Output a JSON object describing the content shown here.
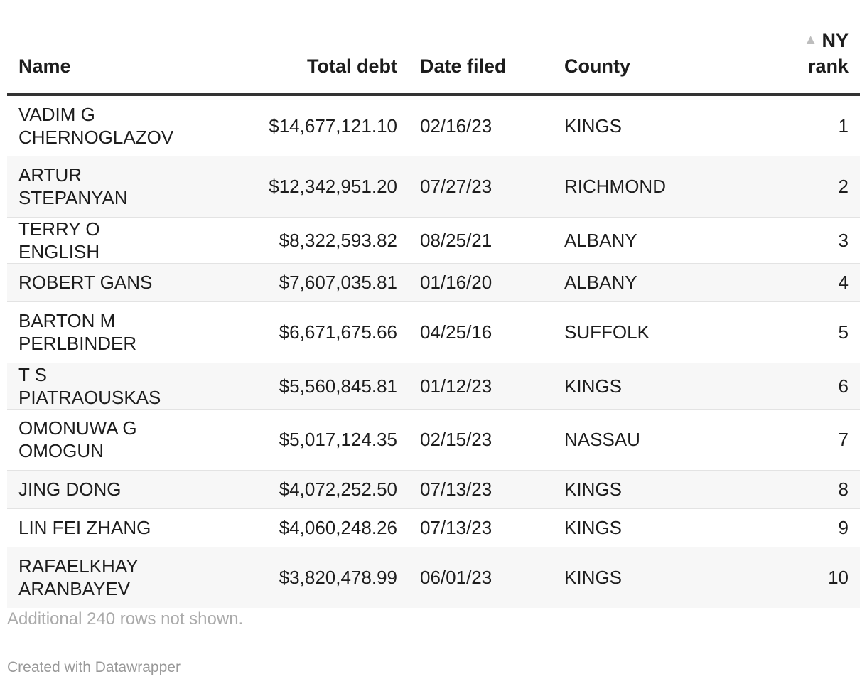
{
  "chart_data": {
    "type": "table",
    "columns": [
      {
        "key": "name",
        "label": "Name",
        "align": "left"
      },
      {
        "key": "total_debt",
        "label": "Total debt",
        "align": "right"
      },
      {
        "key": "date_filed",
        "label": "Date filed",
        "align": "left"
      },
      {
        "key": "county",
        "label": "County",
        "align": "left"
      },
      {
        "key": "ny_rank",
        "label": "NY rank",
        "align": "right",
        "sorted": "ascending"
      }
    ],
    "rows": [
      {
        "name": "VADIM G CHERNOGLAZOV",
        "total_debt": "$14,677,121.10",
        "date_filed": "02/16/23",
        "county": "KINGS",
        "ny_rank": "1"
      },
      {
        "name": "ARTUR STEPANYAN",
        "total_debt": "$12,342,951.20",
        "date_filed": "07/27/23",
        "county": "RICHMOND",
        "ny_rank": "2"
      },
      {
        "name": "TERRY O ENGLISH",
        "total_debt": "$8,322,593.82",
        "date_filed": "08/25/21",
        "county": "ALBANY",
        "ny_rank": "3"
      },
      {
        "name": "ROBERT GANS",
        "total_debt": "$7,607,035.81",
        "date_filed": "01/16/20",
        "county": "ALBANY",
        "ny_rank": "4"
      },
      {
        "name": "BARTON M PERLBINDER",
        "total_debt": "$6,671,675.66",
        "date_filed": "04/25/16",
        "county": "SUFFOLK",
        "ny_rank": "5"
      },
      {
        "name": "T S PIATRAOUSKAS",
        "total_debt": "$5,560,845.81",
        "date_filed": "01/12/23",
        "county": "KINGS",
        "ny_rank": "6"
      },
      {
        "name": "OMONUWA G OMOGUN",
        "total_debt": "$5,017,124.35",
        "date_filed": "02/15/23",
        "county": "NASSAU",
        "ny_rank": "7"
      },
      {
        "name": "JING DONG",
        "total_debt": "$4,072,252.50",
        "date_filed": "07/13/23",
        "county": "KINGS",
        "ny_rank": "8"
      },
      {
        "name": "LIN FEI ZHANG",
        "total_debt": "$4,060,248.26",
        "date_filed": "07/13/23",
        "county": "KINGS",
        "ny_rank": "9"
      },
      {
        "name": "RAFAELKHAY ARANBAYEV",
        "total_debt": "$3,820,478.99",
        "date_filed": "06/01/23",
        "county": "KINGS",
        "ny_rank": "10"
      }
    ],
    "sort_indicator": "▲",
    "more_rows_note": "Additional 240 rows not shown.",
    "credit": "Created with Datawrapper"
  },
  "colors": {
    "text": "#1d1d1d",
    "header_rule": "#333333",
    "stripe": "#f7f7f7",
    "muted": "#aaaaaa"
  }
}
